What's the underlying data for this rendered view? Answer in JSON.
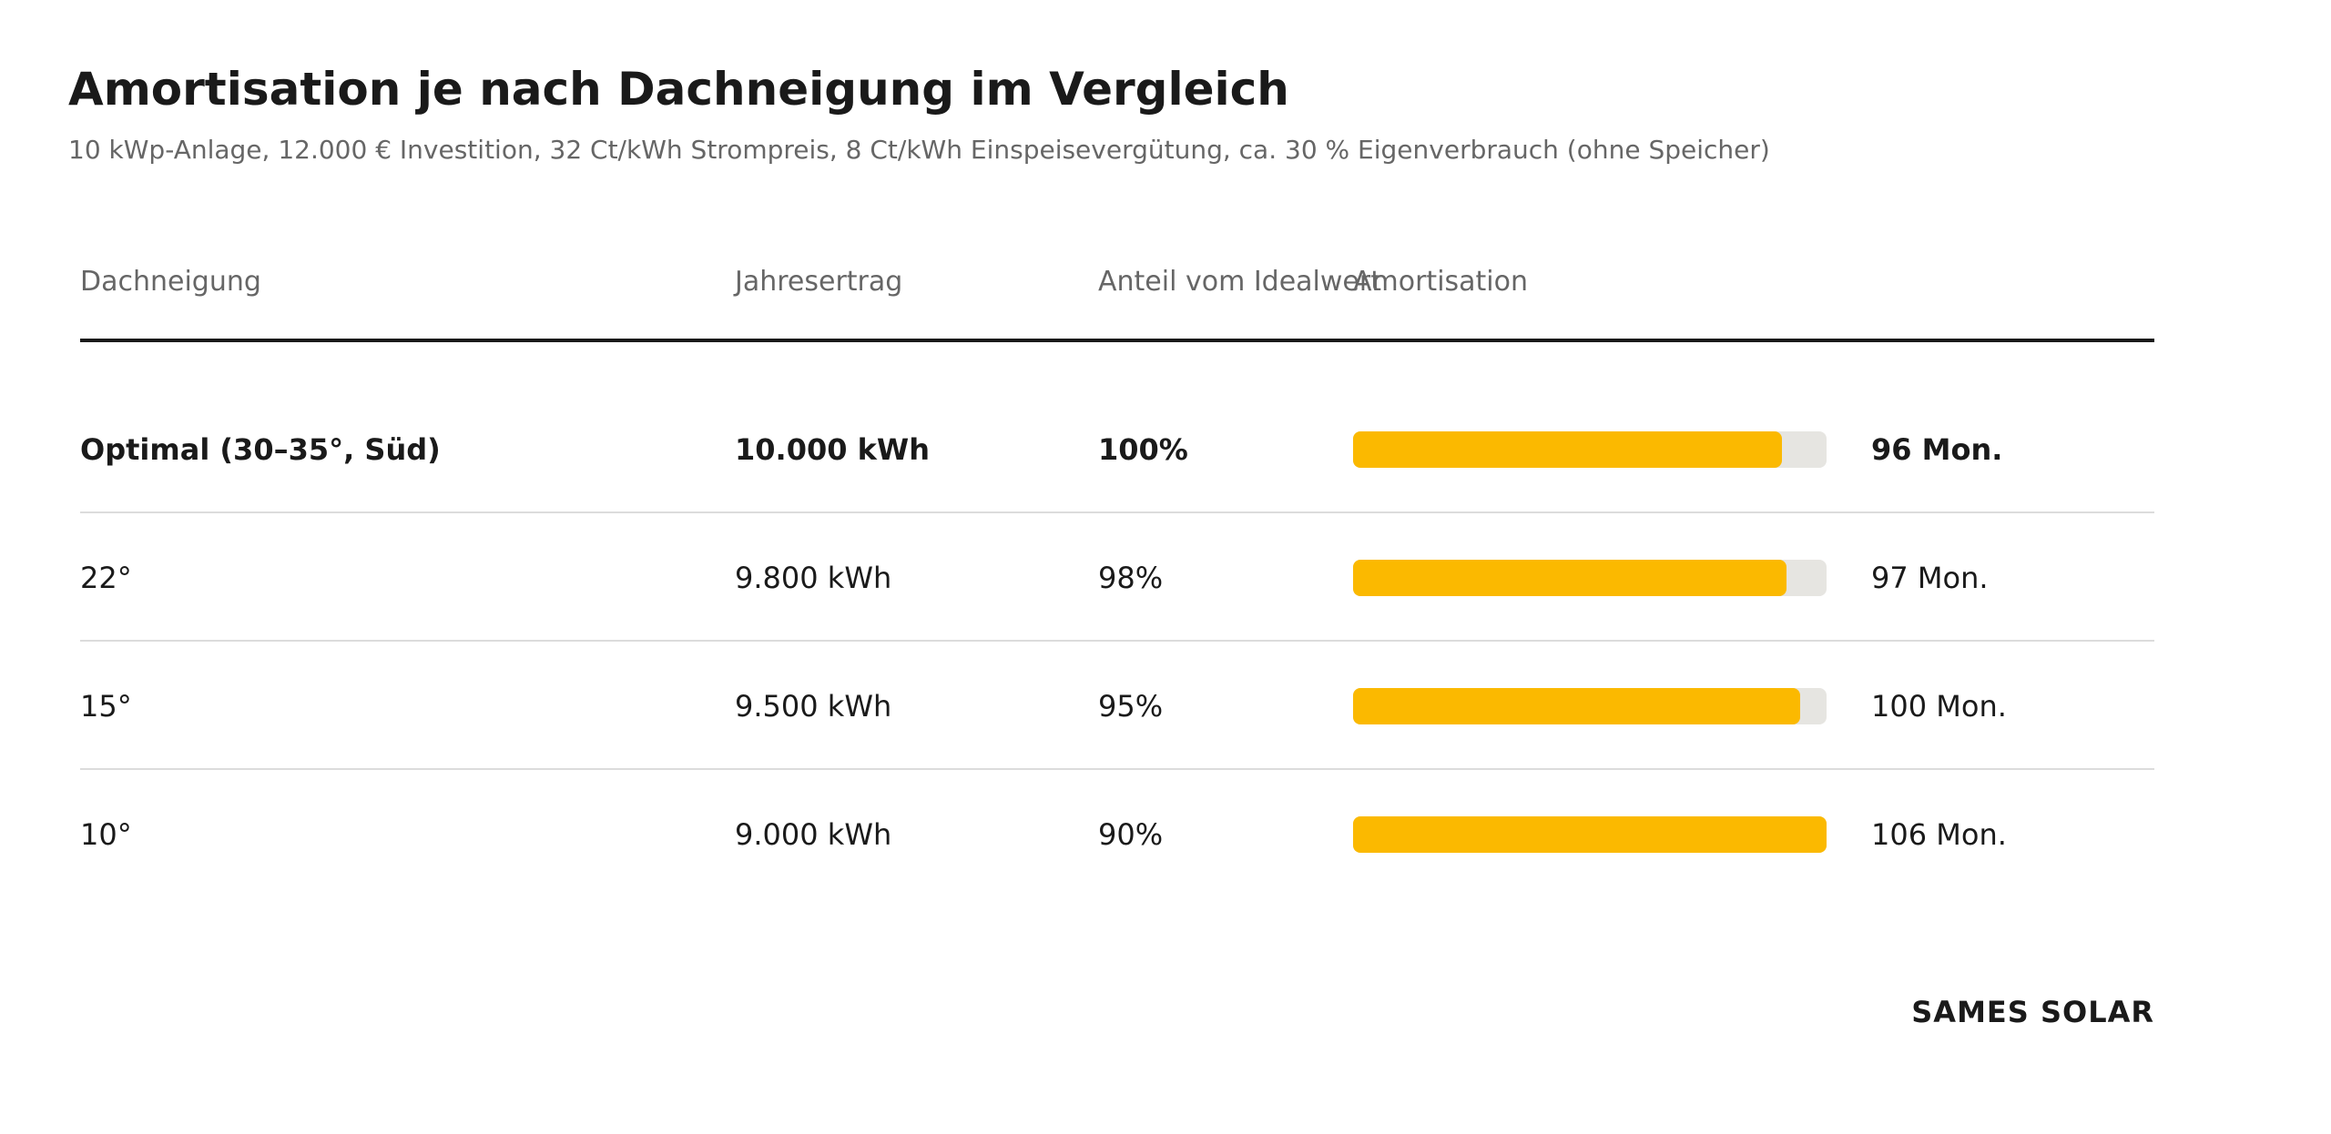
{
  "title": "Amortisation je nach Dachneigung im Vergleich",
  "subtitle": "10 kWp-Anlage, 12.000 € Investition, 32 Ct/kWh Strompreis, 8 Ct/kWh Einspeisevergütung, ca. 30 % Eigenverbrauch (ohne Speicher)",
  "brand": "SAMES SOLAR",
  "colors": {
    "bar": "#fbb900",
    "track": "#e6e5e1",
    "text": "#1a1a1a",
    "muted": "#666666"
  },
  "chart_data": {
    "type": "table",
    "columns": [
      "Dachneigung",
      "Jahresertrag",
      "Anteil vom Idealwert",
      "Amortisation"
    ],
    "bar_max": 106,
    "rows": [
      {
        "neigung": "Optimal (30–35°, Süd)",
        "ertrag": "10.000 kWh",
        "anteil": "100%",
        "amortisation": "96 Mon.",
        "months": 96,
        "highlight": true
      },
      {
        "neigung": "22°",
        "ertrag": "9.800 kWh",
        "anteil": "98%",
        "amortisation": "97 Mon.",
        "months": 97,
        "highlight": false
      },
      {
        "neigung": "15°",
        "ertrag": "9.500 kWh",
        "anteil": "95%",
        "amortisation": "100 Mon.",
        "months": 100,
        "highlight": false
      },
      {
        "neigung": "10°",
        "ertrag": "9.000 kWh",
        "anteil": "90%",
        "amortisation": "106 Mon.",
        "months": 106,
        "highlight": false
      }
    ]
  }
}
